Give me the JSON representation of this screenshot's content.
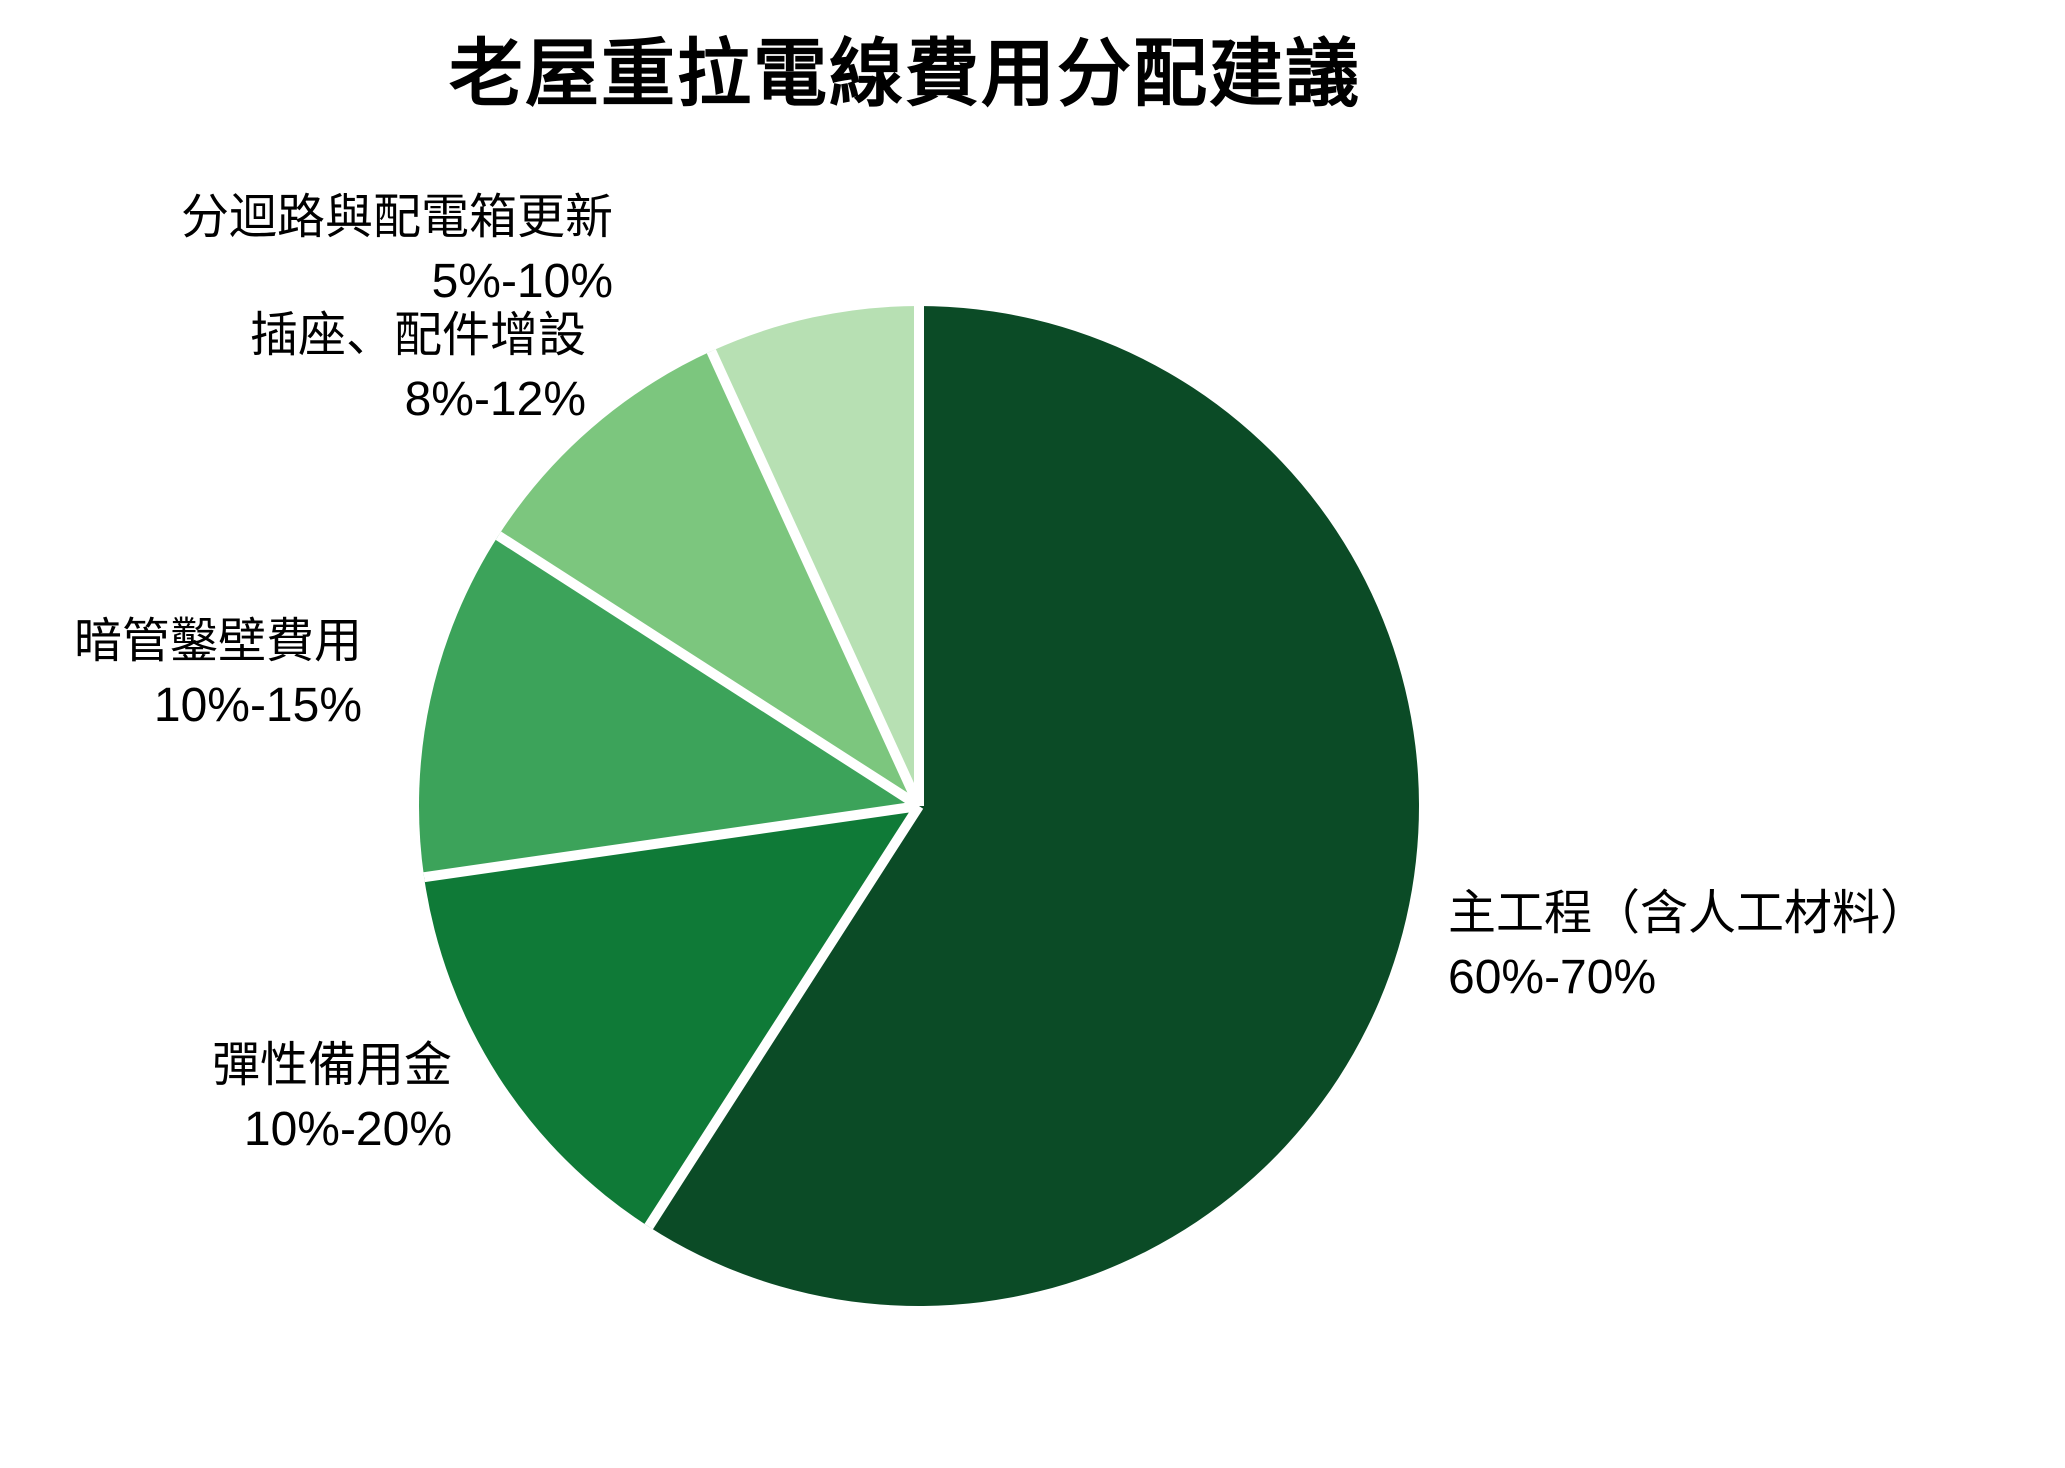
{
  "title": "老屋重拉電線費用分配建議",
  "chart_data": {
    "type": "pie",
    "title": "老屋重拉電線費用分配建議",
    "legend_position": "none",
    "labels_position": "outside",
    "background": "#FFFFFF",
    "text_color": "#000000",
    "divider_color": "#FFFFFF",
    "start_angle_deg": 0,
    "direction": "clockwise",
    "slices": [
      {
        "label": "主工程（含人工材料）",
        "range": "60%-70%",
        "value": 65,
        "color": "#0B4B26"
      },
      {
        "label": "彈性備用金",
        "range": "10%-20%",
        "value": 15,
        "color": "#0F7A37"
      },
      {
        "label": "暗管鑿壁費用",
        "range": "10%-15%",
        "value": 12.5,
        "color": "#3CA35A"
      },
      {
        "label": "插座、配件增設",
        "range": "8%-12%",
        "value": 10,
        "color": "#7CC67E"
      },
      {
        "label": "分迴路與配電箱更新",
        "range": "5%-10%",
        "value": 7.5,
        "color": "#B7E0B3"
      }
    ]
  }
}
